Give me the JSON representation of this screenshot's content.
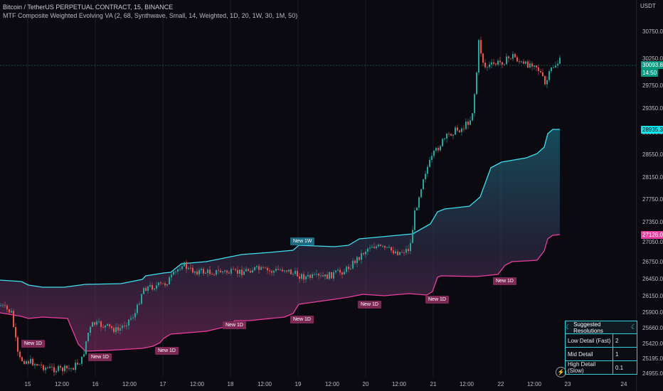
{
  "header": {
    "symbol_line": "Bitcoin / TetherUS PERPETUAL CONTRACT, 15, BINANCE",
    "indicator_line": "MTF Composite Weighted Evolving VA (2, 68, Synthwave, Small, 14, Weighted, 1D, 20, 1W, 30, 1M, 50)"
  },
  "axis": {
    "currency": "USDT",
    "y_ticks": [
      "30750.0",
      "30250.0",
      "29750.0",
      "29350.0",
      "28950.0",
      "28550.0",
      "28150.0",
      "27750.0",
      "27350.0",
      "27050.0",
      "26750.0",
      "26450.0",
      "26150.0",
      "25900.0",
      "25660.0",
      "25420.0",
      "25195.0",
      "24955.0"
    ],
    "x_ticks": [
      "15",
      "12:00",
      "16",
      "12:00",
      "17",
      "12:00",
      "18",
      "12:00",
      "19",
      "12:00",
      "20",
      "12:00",
      "21",
      "12:00",
      "22",
      "12:00",
      "23",
      "24"
    ]
  },
  "price_tags": {
    "last_price": "30093.8",
    "countdown": "14:50",
    "upper_band": "28935.3",
    "lower_band": "27126.0"
  },
  "markers": [
    "New 1D",
    "New 1D",
    "New 1D",
    "New 1D",
    "New 1D",
    "New 1W",
    "New 1D",
    "New 1D",
    "New 1D",
    "New 1D"
  ],
  "table": {
    "title": "Suggested Resolutions",
    "rows": [
      {
        "label": "Low Detail (Fast)",
        "value": "2"
      },
      {
        "label": "Mid Detail",
        "value": "1"
      },
      {
        "label": "High Detail (Slow)",
        "value": "0.1"
      }
    ]
  },
  "colors": {
    "background": "#0b0a10",
    "upper_band": "#3fe0f0",
    "lower_band": "#ea3f9f",
    "candle_up": "#26a69a",
    "candle_down": "#ef5350"
  },
  "icons": {
    "table_symbol": "moon-glyph",
    "logo": "lightning-bolt-icon"
  }
}
